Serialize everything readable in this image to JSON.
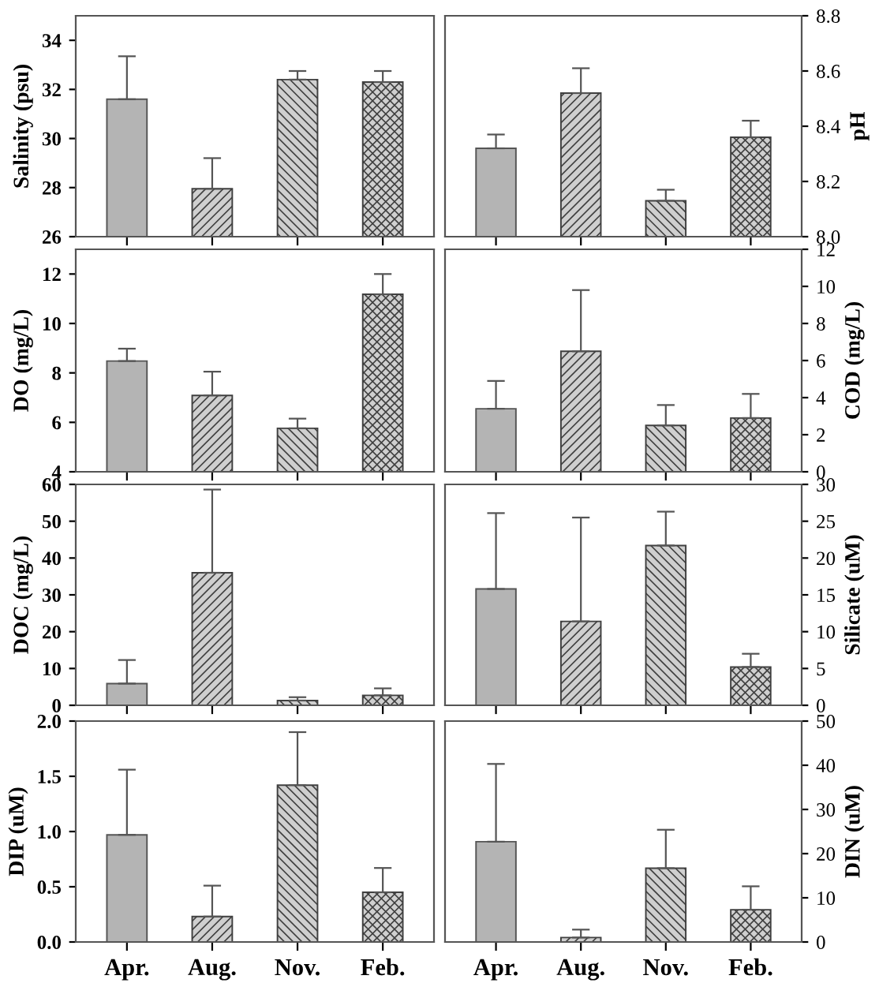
{
  "chart_data": [
    {
      "type": "bar",
      "ylabel": "Salinity (psu)",
      "categories": [
        null,
        null,
        null,
        null
      ],
      "values": [
        31.6,
        27.95,
        32.4,
        32.3
      ],
      "errors": [
        [
          31.6,
          33.35
        ],
        [
          27.95,
          29.2
        ],
        [
          32.4,
          32.75
        ],
        [
          32.3,
          32.75
        ]
      ],
      "colors": [
        "#b4b4b4",
        "#404040",
        "#404040",
        "#404040"
      ],
      "ylim": [
        26,
        35
      ],
      "yticks": [
        26,
        28,
        30,
        32,
        34
      ],
      "tick_labels": "y"
    },
    {
      "type": "bar",
      "ylabel": "pH",
      "categories": [
        null,
        null,
        null,
        null
      ],
      "values": [
        8.32,
        8.52,
        8.13,
        8.36
      ],
      "errors": [
        [
          8.32,
          8.37
        ],
        [
          8.52,
          8.61
        ],
        [
          8.13,
          8.17
        ],
        [
          8.36,
          8.42
        ]
      ],
      "colors": [
        "#b4b4b4",
        "#404040",
        "#404040",
        "#404040"
      ],
      "ylim": [
        8.0,
        8.8
      ],
      "yticks": [
        {
          "value": 8,
          "label": "8.0"
        },
        8.2,
        8.4,
        8.6,
        8.8
      ],
      "tick_labels": "y"
    },
    {
      "type": "bar",
      "ylabel": "DO (mg/L)",
      "categories": [
        null,
        null,
        null,
        null
      ],
      "values": [
        8.48,
        7.09,
        5.76,
        11.18
      ],
      "errors": [
        [
          8.48,
          8.98
        ],
        [
          7.09,
          8.05
        ],
        [
          5.76,
          6.15
        ],
        [
          11.18,
          12.0
        ]
      ],
      "colors": [
        "#b4b4b4",
        "#404040",
        "#404040",
        "#404040"
      ],
      "ylim": [
        4,
        13
      ],
      "yticks": [
        4,
        6,
        8,
        10,
        12
      ],
      "tick_labels": "y"
    },
    {
      "type": "bar",
      "ylabel": "COD (mg/L)",
      "categories": [
        null,
        null,
        null,
        null
      ],
      "values": [
        3.4,
        6.5,
        2.5,
        2.9
      ],
      "errors": [
        [
          3.4,
          4.9
        ],
        [
          6.5,
          9.8
        ],
        [
          2.5,
          3.6
        ],
        [
          2.9,
          4.2
        ]
      ],
      "colors": [
        "#b4b4b4",
        "#404040",
        "#404040",
        "#404040"
      ],
      "ylim": [
        0,
        12
      ],
      "yticks": [
        0,
        2,
        4,
        6,
        8,
        10,
        12
      ],
      "tick_labels": "y"
    },
    {
      "type": "bar",
      "ylabel": "DOC (mg/L)",
      "categories": [
        null,
        null,
        null,
        null
      ],
      "values": [
        5.9,
        36.0,
        1.3,
        2.7
      ],
      "errors": [
        [
          5.9,
          12.3
        ],
        [
          36.0,
          58.6
        ],
        [
          1.3,
          2.2
        ],
        [
          2.7,
          4.6
        ]
      ],
      "colors": [
        "#b4b4b4",
        "#404040",
        "#404040",
        "#404040"
      ],
      "ylim": [
        0,
        60
      ],
      "yticks": [
        0,
        10,
        20,
        30,
        40,
        50,
        60
      ],
      "tick_labels": "y"
    },
    {
      "type": "bar",
      "ylabel": "Silicate (uM)",
      "categories": [
        null,
        null,
        null,
        null
      ],
      "values": [
        15.8,
        11.4,
        21.7,
        5.2
      ],
      "errors": [
        [
          15.8,
          26.1
        ],
        [
          11.4,
          25.5
        ],
        [
          21.7,
          26.3
        ],
        [
          5.2,
          7.0
        ]
      ],
      "colors": [
        "#b4b4b4",
        "#404040",
        "#404040",
        "#404040"
      ],
      "ylim": [
        0,
        30
      ],
      "yticks": [
        0,
        5,
        10,
        15,
        20,
        25,
        30
      ],
      "tick_labels": "y"
    },
    {
      "type": "bar",
      "ylabel": "DIP (uM)",
      "categories": [
        "Apr.",
        "Aug.",
        "Nov.",
        "Feb."
      ],
      "values": [
        0.97,
        0.23,
        1.42,
        0.45
      ],
      "errors": [
        [
          0.97,
          1.56
        ],
        [
          0.23,
          0.51
        ],
        [
          1.42,
          1.9
        ],
        [
          0.45,
          0.67
        ]
      ],
      "colors": [
        "#b4b4b4",
        "#404040",
        "#404040",
        "#404040"
      ],
      "ylim": [
        0,
        2.0
      ],
      "yticks": [
        {
          "value": 0,
          "label": "0.0"
        },
        0.5,
        {
          "value": 1,
          "label": "1.0"
        },
        1.5,
        {
          "value": 2,
          "label": "2.0"
        }
      ]
    },
    {
      "type": "bar",
      "ylabel": "DIN (uM)",
      "categories": [
        "Apr.",
        "Aug.",
        "Nov.",
        "Feb."
      ],
      "values": [
        22.7,
        1.0,
        16.7,
        7.3
      ],
      "errors": [
        [
          22.7,
          40.3
        ],
        [
          1.0,
          2.8
        ],
        [
          16.7,
          25.4
        ],
        [
          7.3,
          12.6
        ]
      ],
      "colors": [
        "#b4b4b4",
        "#404040",
        "#404040",
        "#404040"
      ],
      "ylim": [
        0,
        50
      ],
      "yticks": [
        0,
        10,
        20,
        30,
        40,
        50
      ]
    }
  ]
}
